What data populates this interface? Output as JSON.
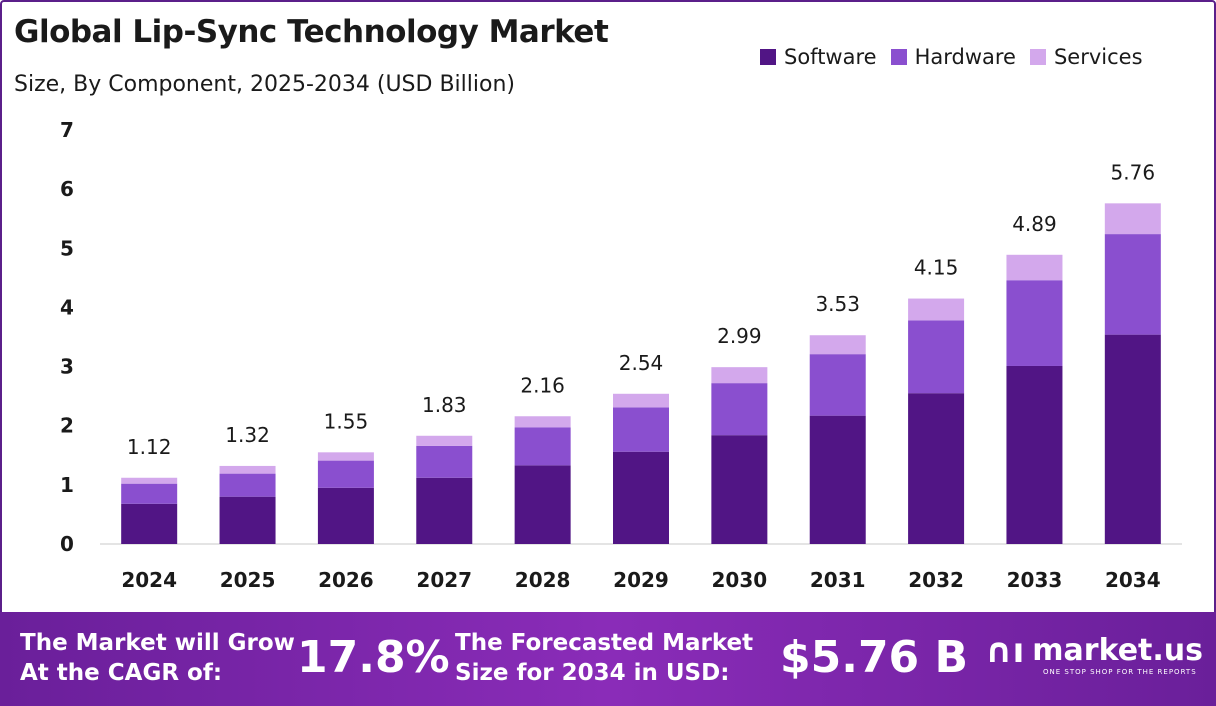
{
  "header": {
    "title": "Global Lip-Sync Technology Market",
    "subtitle": "Size, By Component, 2025-2034 (USD Billion)"
  },
  "colors": {
    "software": "#511585",
    "hardware": "#8a4fcf",
    "services": "#d3a8ec",
    "axis_text": "#1a1a1a"
  },
  "chart_data": {
    "type": "bar",
    "stacked": true,
    "categories": [
      "2024",
      "2025",
      "2026",
      "2027",
      "2028",
      "2029",
      "2030",
      "2031",
      "2032",
      "2033",
      "2034"
    ],
    "series": [
      {
        "name": "Software",
        "values": [
          0.68,
          0.8,
          0.95,
          1.12,
          1.33,
          1.56,
          1.84,
          2.17,
          2.55,
          3.01,
          3.54
        ]
      },
      {
        "name": "Hardware",
        "values": [
          0.34,
          0.39,
          0.46,
          0.54,
          0.64,
          0.75,
          0.88,
          1.04,
          1.23,
          1.45,
          1.7
        ]
      },
      {
        "name": "Services",
        "values": [
          0.1,
          0.13,
          0.14,
          0.17,
          0.19,
          0.23,
          0.27,
          0.32,
          0.37,
          0.43,
          0.52
        ]
      }
    ],
    "totals": [
      "1.12",
      "1.32",
      "1.55",
      "1.83",
      "2.16",
      "2.54",
      "2.99",
      "3.53",
      "4.15",
      "4.89",
      "5.76"
    ],
    "yticks": [
      "0",
      "1",
      "2",
      "3",
      "4",
      "5",
      "6",
      "7"
    ],
    "ylim": [
      0,
      7
    ],
    "grid": false,
    "legend_position": "top-right"
  },
  "footer": {
    "cagr_label": "The Market will Grow At the CAGR of:",
    "cagr_value": "17.8%",
    "forecast_label": "The Forecasted Market Size for 2034 in USD:",
    "forecast_value": "$5.76 B",
    "brand_name": "market.us",
    "brand_tagline": "ONE STOP SHOP FOR THE REPORTS"
  }
}
